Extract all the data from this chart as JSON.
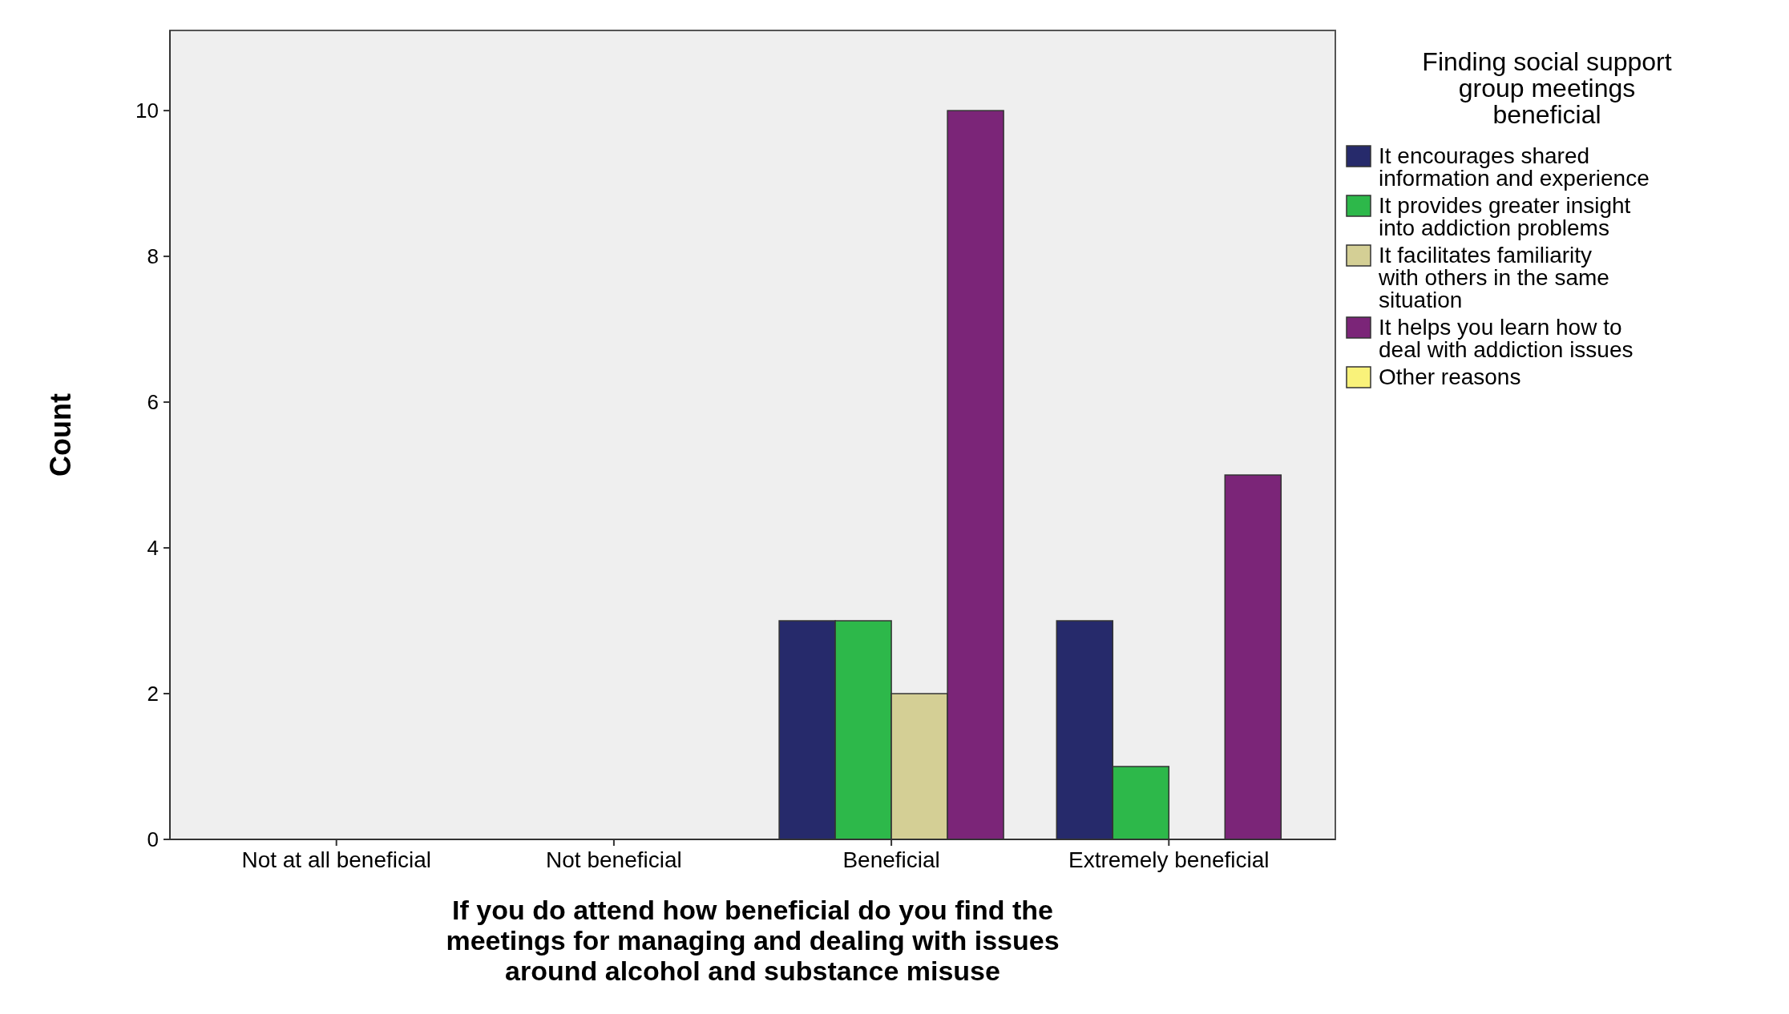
{
  "chart_data": {
    "type": "bar",
    "xlabel": "If you do attend how beneficial do you find the meetings for managing and dealing with issues around alcohol and substance misuse",
    "ylabel": "Count",
    "legend_title": "Finding social support group meetings beneficial",
    "legend": "right",
    "grid": false,
    "categories": [
      "Not at all beneficial",
      "Not beneficial",
      "Beneficial",
      "Extremely beneficial"
    ],
    "ylim": [
      0,
      11.1
    ],
    "yticks": [
      0,
      2,
      4,
      6,
      8,
      10
    ],
    "series": [
      {
        "name": "It encourages shared information and experience",
        "color": "#262a6b",
        "values": [
          null,
          null,
          3,
          3
        ]
      },
      {
        "name": "It provides greater insight into addiction problems",
        "color": "#2db84a",
        "values": [
          null,
          null,
          3,
          1
        ]
      },
      {
        "name": "It facilitates familiarity with others in the same situation",
        "color": "#d4cf95",
        "values": [
          null,
          null,
          2,
          null
        ]
      },
      {
        "name": "It helps you learn how to deal with addiction issues",
        "color": "#7b2578",
        "values": [
          null,
          null,
          10,
          5
        ]
      },
      {
        "name": "Other reasons",
        "color": "#f9f27a",
        "values": [
          null,
          null,
          null,
          null
        ]
      }
    ]
  }
}
